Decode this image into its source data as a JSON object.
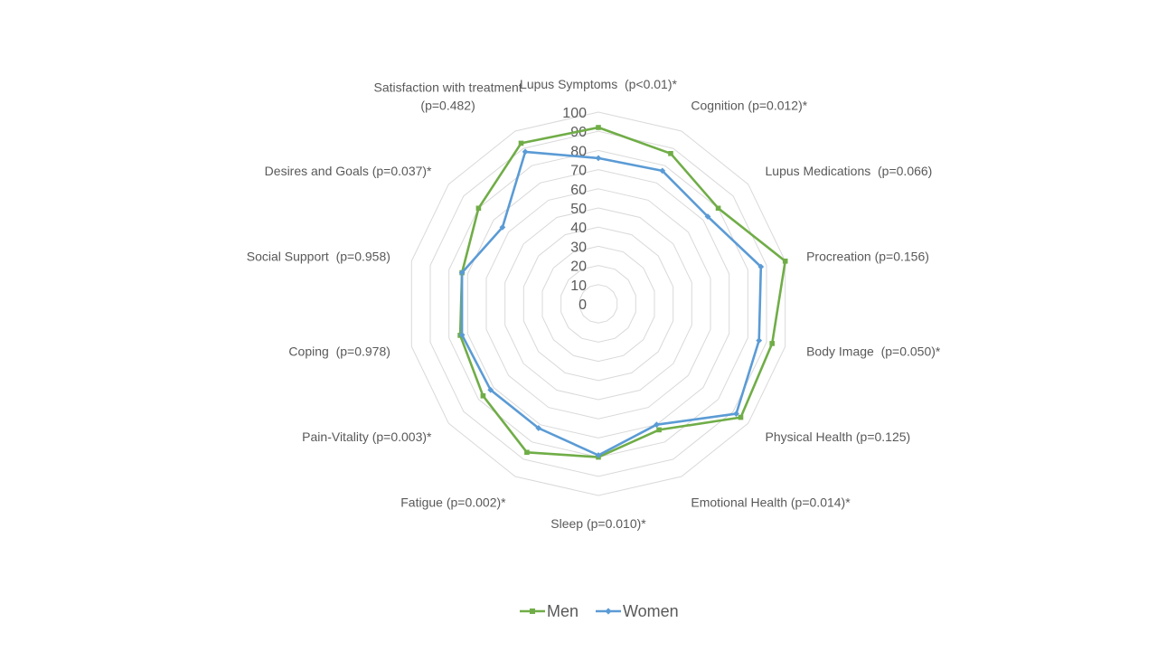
{
  "chart_data": {
    "type": "radar",
    "title": "",
    "categories": [
      "Lupus Symptoms  (p<0.01)*",
      "Cognition (p=0.012)*",
      "Lupus Medications  (p=0.066)",
      "Procreation (p=0.156)",
      "Body Image  (p=0.050)*",
      "Physical Health (p=0.125)",
      "Emotional Health (p=0.014)*",
      "Sleep (p=0.010)*",
      "Fatigue (p=0.002)*",
      "Pain-Vitality (p=0.003)*",
      "Coping  (p=0.978)",
      "Social Support  (p=0.958)",
      "Desires and Goals (p=0.037)*",
      "Satisfaction with treatment (p=0.482)"
    ],
    "category_lines": [
      [
        "Lupus Symptoms  (p<0.01)*"
      ],
      [
        "Cognition (p=0.012)*"
      ],
      [
        "Lupus Medications  (p=0.066)"
      ],
      [
        "Procreation (p=0.156)"
      ],
      [
        "Body Image  (p=0.050)*"
      ],
      [
        "Physical Health (p=0.125)"
      ],
      [
        "Emotional Health (p=0.014)*"
      ],
      [
        "Sleep (p=0.010)*"
      ],
      [
        "Fatigue (p=0.002)*"
      ],
      [
        "Pain-Vitality (p=0.003)*"
      ],
      [
        "Coping  (p=0.978)"
      ],
      [
        "Social Support  (p=0.958)"
      ],
      [
        "Desires and Goals (p=0.037)*"
      ],
      [
        "Satisfaction with treatment",
        "(p=0.482)"
      ]
    ],
    "ticks": [
      "0",
      "10",
      "20",
      "30",
      "40",
      "50",
      "60",
      "70",
      "80",
      "90",
      "100"
    ],
    "rlim": [
      0,
      100
    ],
    "grid": true,
    "legend_position": "bottom",
    "series": [
      {
        "name": "Men",
        "color": "#70AD47",
        "values": [
          92,
          87,
          80,
          100,
          93,
          95,
          73,
          80,
          86,
          77,
          74,
          73,
          80,
          93
        ]
      },
      {
        "name": "Women",
        "color": "#5B9BD5",
        "values": [
          76,
          77,
          73,
          87,
          86,
          92,
          70,
          79,
          72,
          72,
          73,
          73,
          64,
          88
        ]
      }
    ]
  }
}
